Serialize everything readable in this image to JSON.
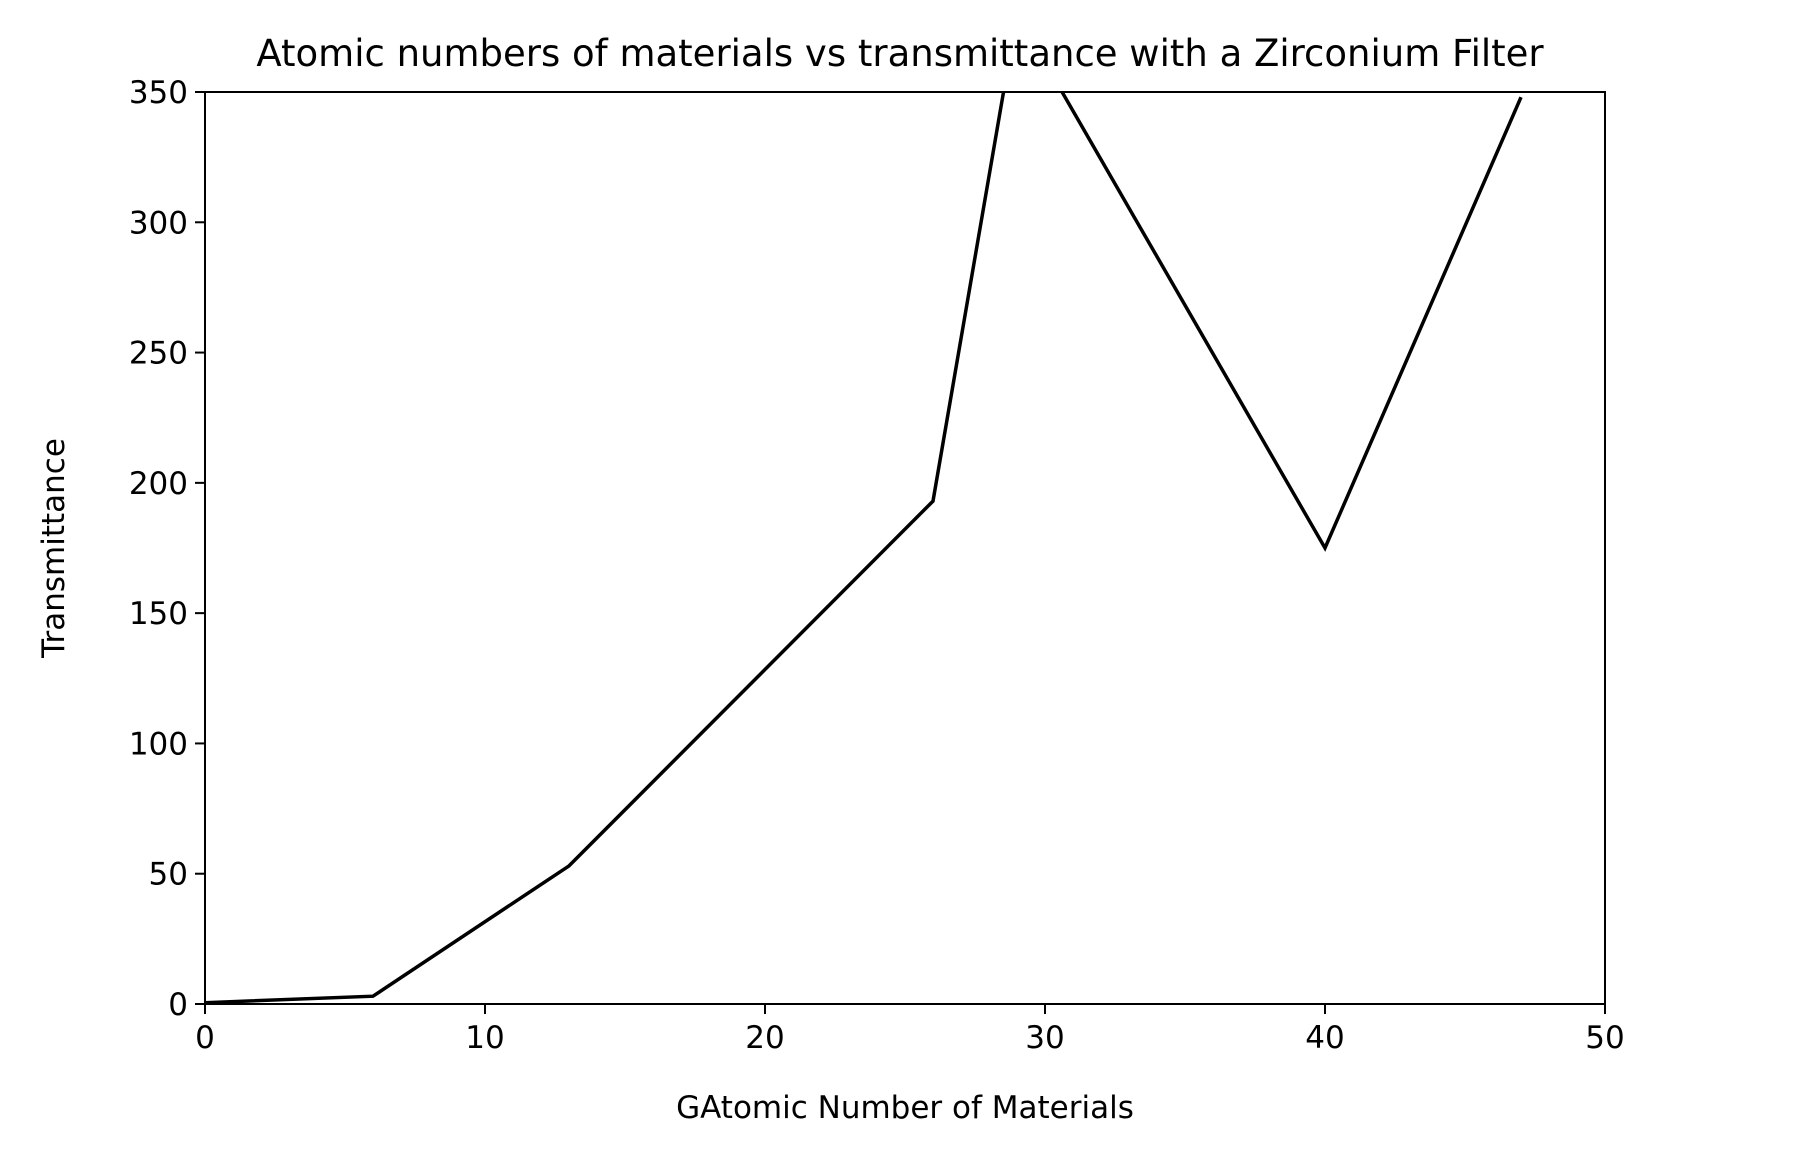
{
  "chart_data": {
    "type": "line",
    "title": "Atomic numbers of materials vs transmittance with a Zirconium Filter",
    "xlabel": "GAtomic Number of Materials",
    "ylabel": "Transmittance",
    "xlim": [
      0,
      50
    ],
    "ylim": [
      0,
      350
    ],
    "xticks": [
      0,
      10,
      20,
      30,
      40,
      50
    ],
    "xtick_labels": [
      "0",
      "10",
      "20",
      "30",
      "40",
      "50"
    ],
    "yticks": [
      0,
      50,
      100,
      150,
      200,
      250,
      300,
      350
    ],
    "ytick_labels": [
      "0",
      "50",
      "100",
      "150",
      "200",
      "250",
      "300",
      "350"
    ],
    "grid": false,
    "line_color": "#000000",
    "series": [
      {
        "x": [
          0,
          6,
          13,
          26,
          29,
          40,
          47
        ],
        "y": [
          0.5,
          3,
          53,
          193,
          380,
          175,
          348
        ]
      }
    ]
  }
}
